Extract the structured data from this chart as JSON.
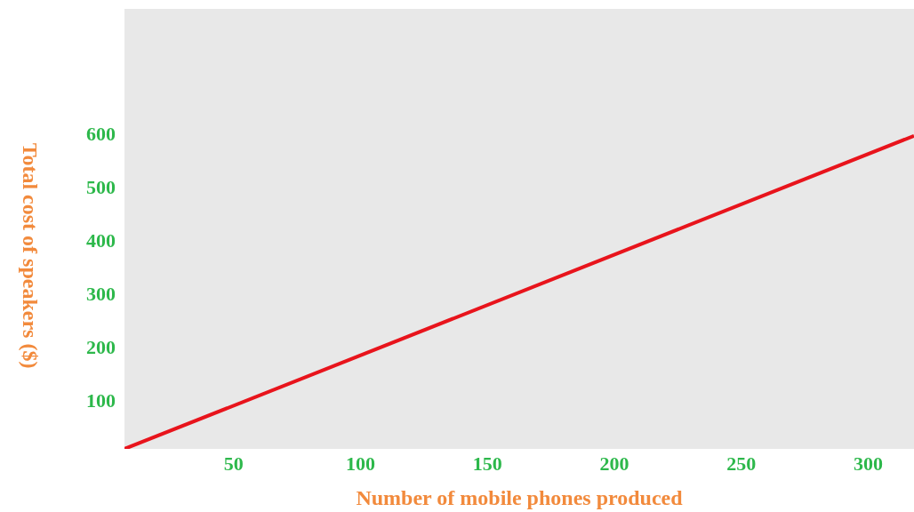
{
  "chart_data": {
    "type": "line",
    "xlabel": "Number of mobile phones produced",
    "ylabel": "Total cost of speakers ($)",
    "x": [
      7,
      318
    ],
    "series": [
      {
        "color": "#e8141c",
        "values": [
          8,
          595
        ]
      }
    ],
    "xlim": [
      7,
      318
    ],
    "ylim": [
      8,
      833
    ],
    "xticks": [
      50,
      100,
      150,
      200,
      250,
      300
    ],
    "yticks": [
      100,
      200,
      300,
      400,
      500,
      600
    ],
    "grid": false,
    "marker": "none",
    "line_style": "solid"
  }
}
